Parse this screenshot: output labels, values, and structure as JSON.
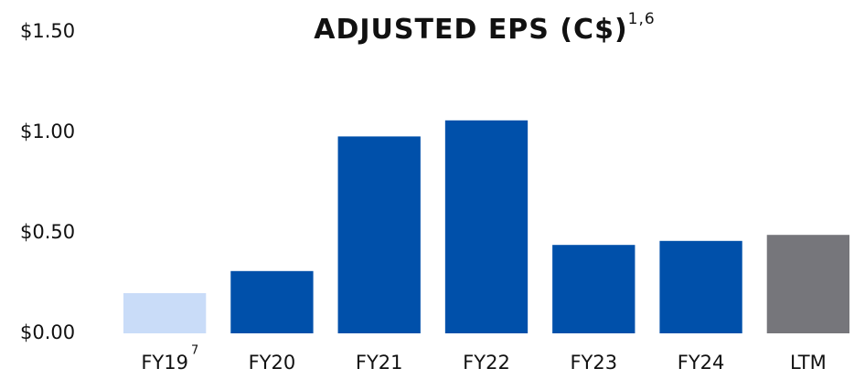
{
  "chart_data": {
    "type": "bar",
    "title": "ADJUSTED EPS (C$)",
    "title_superscript": "1,6",
    "categories": [
      "FY19",
      "FY20",
      "FY21",
      "FY22",
      "FY23",
      "FY24",
      "LTM"
    ],
    "category_superscripts": [
      "7",
      null,
      null,
      null,
      null,
      null,
      null
    ],
    "values": [
      0.2,
      0.31,
      0.98,
      1.06,
      0.44,
      0.46,
      0.49
    ],
    "colors": [
      "#c9dcf8",
      "#0050aa",
      "#0050aa",
      "#0050aa",
      "#0050aa",
      "#0050aa",
      "#76767b"
    ],
    "ylim": [
      0,
      1.5
    ],
    "yticks": [
      {
        "value": 0,
        "label": "$0.00"
      },
      {
        "value": 0.5,
        "label": "$0.50"
      },
      {
        "value": 1.0,
        "label": "$1.00"
      },
      {
        "value": 1.5,
        "label": "$1.50"
      }
    ],
    "grid": false
  }
}
